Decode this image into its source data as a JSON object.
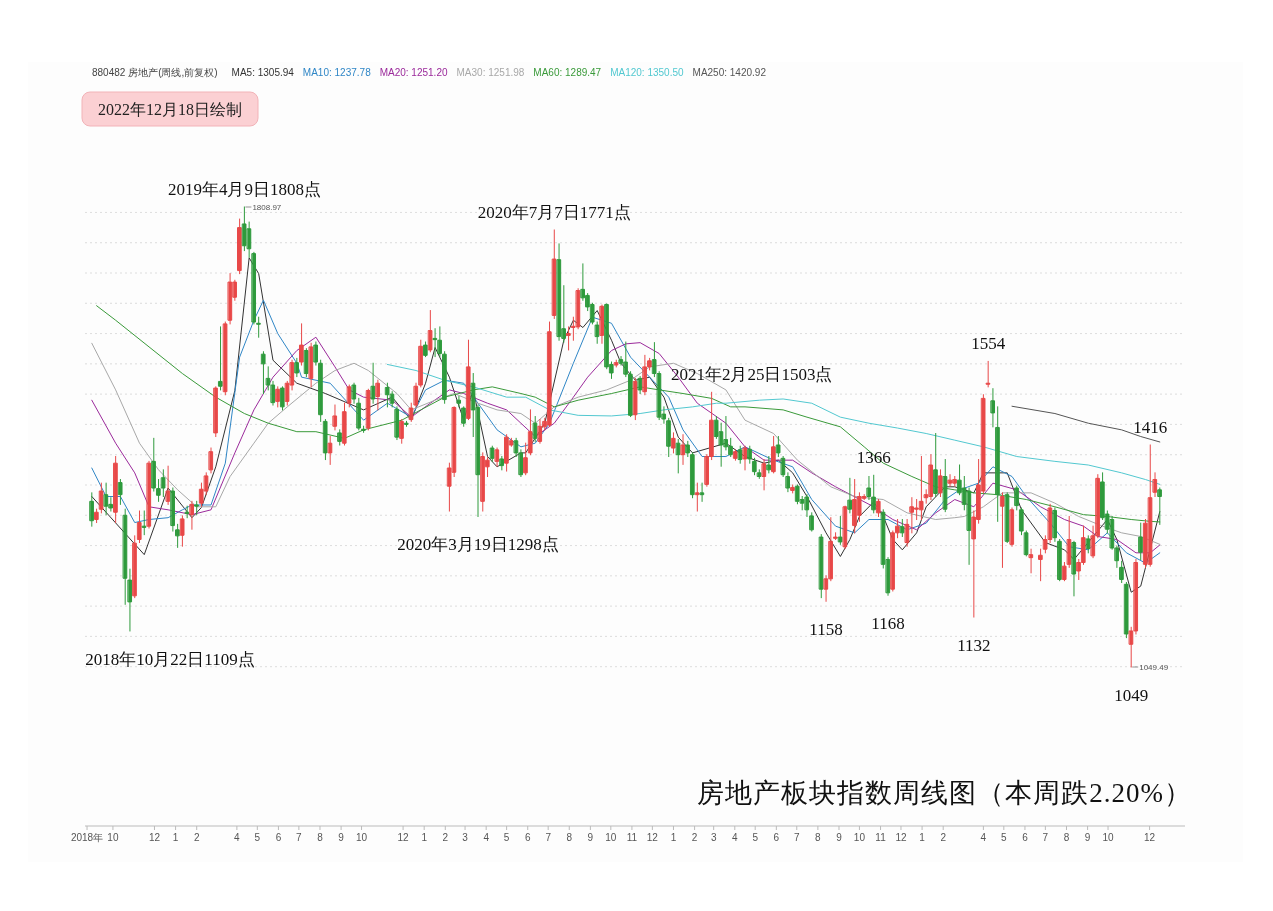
{
  "chart_data": {
    "type": "candlestick",
    "title": "房地产板块指数周线图（本周跌2.20%）",
    "subtitle": "880482 房地产(周线,前复权)",
    "legend": "top left",
    "grid": "y",
    "tick_labels": "x",
    "xlim": [
      "2018-08-21",
      "2023-01-22"
    ],
    "yticks": [
      {
        "value": 1050,
        "label": null
      },
      {
        "value": 1100,
        "label": null
      },
      {
        "value": 1150,
        "label": null
      },
      {
        "value": 1200,
        "label": null
      },
      {
        "value": 1250,
        "label": null
      },
      {
        "value": 1300,
        "label": null
      },
      {
        "value": 1350,
        "label": null
      },
      {
        "value": 1400,
        "label": null
      },
      {
        "value": 1450,
        "label": null
      },
      {
        "value": 1500,
        "label": null
      },
      {
        "value": 1550,
        "label": null
      },
      {
        "value": 1600,
        "label": null
      },
      {
        "value": 1650,
        "label": null
      },
      {
        "value": 1700,
        "label": null
      },
      {
        "value": 1750,
        "label": null
      },
      {
        "value": 1800,
        "label": null
      }
    ],
    "xticks": [
      {
        "value": "2018-08-24",
        "label": "2018年"
      },
      {
        "value": "2018-10",
        "label": "10"
      },
      {
        "value": "2018-12",
        "label": "12"
      },
      {
        "value": "2019-01",
        "label": "1"
      },
      {
        "value": "2019-02",
        "label": "2"
      },
      {
        "value": "2019-04",
        "label": "4"
      },
      {
        "value": "2019-05",
        "label": "5"
      },
      {
        "value": "2019-06",
        "label": "6"
      },
      {
        "value": "2019-07",
        "label": "7"
      },
      {
        "value": "2019-08",
        "label": "8"
      },
      {
        "value": "2019-09",
        "label": "9"
      },
      {
        "value": "2019-10",
        "label": "10"
      },
      {
        "value": "2019-12",
        "label": "12"
      },
      {
        "value": "2020-01",
        "label": "1"
      },
      {
        "value": "2020-02",
        "label": "2"
      },
      {
        "value": "2020-03",
        "label": "3"
      },
      {
        "value": "2020-04",
        "label": "4"
      },
      {
        "value": "2020-05",
        "label": "5"
      },
      {
        "value": "2020-06",
        "label": "6"
      },
      {
        "value": "2020-07",
        "label": "7"
      },
      {
        "value": "2020-08",
        "label": "8"
      },
      {
        "value": "2020-09",
        "label": "9"
      },
      {
        "value": "2020-10",
        "label": "10"
      },
      {
        "value": "2020-11",
        "label": "11"
      },
      {
        "value": "2020-12",
        "label": "12"
      },
      {
        "value": "2021-01",
        "label": "1"
      },
      {
        "value": "2021-02",
        "label": "2"
      },
      {
        "value": "2021-03",
        "label": "3"
      },
      {
        "value": "2021-04",
        "label": "4"
      },
      {
        "value": "2021-05",
        "label": "5"
      },
      {
        "value": "2021-06",
        "label": "6"
      },
      {
        "value": "2021-07",
        "label": "7"
      },
      {
        "value": "2021-08",
        "label": "8"
      },
      {
        "value": "2021-09",
        "label": "9"
      },
      {
        "value": "2021-10",
        "label": "10"
      },
      {
        "value": "2021-11",
        "label": "11"
      },
      {
        "value": "2021-12",
        "label": "12"
      },
      {
        "value": "2022-01",
        "label": "1"
      },
      {
        "value": "2022-02",
        "label": "2"
      },
      {
        "value": "2022-04",
        "label": "4"
      },
      {
        "value": "2022-05",
        "label": "5"
      },
      {
        "value": "2022-06",
        "label": "6"
      },
      {
        "value": "2022-07",
        "label": "7"
      },
      {
        "value": "2022-08",
        "label": "8"
      },
      {
        "value": "2022-09",
        "label": "9"
      },
      {
        "value": "2022-10",
        "label": "10"
      },
      {
        "value": "2022-12",
        "label": "12"
      }
    ],
    "annotations": [
      "2022年12月18日绘制",
      {
        "text": "2018年10月22日1109点",
        "x": "2018-10-26",
        "y": 1109
      },
      {
        "text": "2019年4月9日1808点",
        "x": "2019-04-12",
        "y": 1808.97
      },
      {
        "text": "2020年3月19日1298点",
        "x": "2020-03-20",
        "y": 1298
      },
      {
        "text": "2020年7月7日1771点",
        "x": "2020-07-10",
        "y": 1771
      },
      {
        "text": "2021年2月25日1503点",
        "x": "2021-02-26",
        "y": 1503
      },
      {
        "text": "1158",
        "x": "2021-08-13",
        "y": 1158
      },
      {
        "text": "1366",
        "x": "2021-10-22",
        "y": 1366
      },
      {
        "text": "1168",
        "x": "2021-11-12",
        "y": 1168
      },
      {
        "text": "1132",
        "x": "2022-03-18",
        "y": 1132
      },
      {
        "text": "1554",
        "x": "2022-04-08",
        "y": 1554
      },
      {
        "text": "1049",
        "x": "2022-11-04",
        "y": 1049.49
      },
      {
        "text": "1416",
        "x": "2022-12-02",
        "y": 1416
      },
      {
        "text": "1808.97",
        "x": "2019-04-12",
        "y": 1808.97
      },
      {
        "text": "1049.49",
        "x": "2022-11-04",
        "y": 1049.49
      }
    ],
    "x": [
      "2018-08-31",
      "2018-09-07",
      "2018-09-14",
      "2018-09-21",
      "2018-09-28",
      "2018-10-05",
      "2018-10-12",
      "2018-10-19",
      "2018-10-26",
      "2018-11-02",
      "2018-11-09",
      "2018-11-16",
      "2018-11-23",
      "2018-11-30",
      "2018-12-07",
      "2018-12-14",
      "2018-12-21",
      "2018-12-28",
      "2019-01-04",
      "2019-01-11",
      "2019-01-18",
      "2019-01-25",
      "2019-02-01",
      "2019-02-08",
      "2019-02-15",
      "2019-02-22",
      "2019-03-01",
      "2019-03-08",
      "2019-03-15",
      "2019-03-22",
      "2019-03-29",
      "2019-04-05",
      "2019-04-12",
      "2019-04-19",
      "2019-04-26",
      "2019-05-03",
      "2019-05-10",
      "2019-05-17",
      "2019-05-24",
      "2019-05-31",
      "2019-06-07",
      "2019-06-14",
      "2019-06-21",
      "2019-06-28",
      "2019-07-05",
      "2019-07-12",
      "2019-07-19",
      "2019-07-26",
      "2019-08-02",
      "2019-08-09",
      "2019-08-16",
      "2019-08-23",
      "2019-08-30",
      "2019-09-06",
      "2019-09-13",
      "2019-09-20",
      "2019-09-27",
      "2019-10-04",
      "2019-10-11",
      "2019-10-18",
      "2019-10-25",
      "2019-11-08",
      "2019-11-15",
      "2019-11-22",
      "2019-11-29",
      "2019-12-06",
      "2019-12-13",
      "2019-12-20",
      "2019-12-27",
      "2020-01-03",
      "2020-01-10",
      "2020-01-17",
      "2020-01-24",
      "2020-01-31",
      "2020-02-07",
      "2020-02-14",
      "2020-02-21",
      "2020-02-28",
      "2020-03-06",
      "2020-03-13",
      "2020-03-20",
      "2020-03-27",
      "2020-04-03",
      "2020-04-10",
      "2020-04-17",
      "2020-04-24",
      "2020-05-01",
      "2020-05-08",
      "2020-05-15",
      "2020-05-22",
      "2020-05-29",
      "2020-06-05",
      "2020-06-12",
      "2020-06-19",
      "2020-06-26",
      "2020-07-03",
      "2020-07-10",
      "2020-07-17",
      "2020-07-24",
      "2020-07-31",
      "2020-08-07",
      "2020-08-14",
      "2020-08-21",
      "2020-08-28",
      "2020-09-04",
      "2020-09-11",
      "2020-09-18",
      "2020-09-25",
      "2020-10-02",
      "2020-10-09",
      "2020-10-16",
      "2020-10-23",
      "2020-10-30",
      "2020-11-06",
      "2020-11-13",
      "2020-11-20",
      "2020-11-27",
      "2020-12-04",
      "2020-12-11",
      "2020-12-18",
      "2020-12-25",
      "2021-01-01",
      "2021-01-08",
      "2021-01-15",
      "2021-01-22",
      "2021-01-29",
      "2021-02-05",
      "2021-02-12",
      "2021-02-19",
      "2021-02-26",
      "2021-03-05",
      "2021-03-12",
      "2021-03-19",
      "2021-03-26",
      "2021-04-02",
      "2021-04-09",
      "2021-04-16",
      "2021-04-23",
      "2021-04-30",
      "2021-05-07",
      "2021-05-14",
      "2021-05-21",
      "2021-05-28",
      "2021-06-04",
      "2021-06-11",
      "2021-06-18",
      "2021-06-25",
      "2021-07-02",
      "2021-07-09",
      "2021-07-16",
      "2021-07-23",
      "2021-08-06",
      "2021-08-13",
      "2021-08-20",
      "2021-08-27",
      "2021-09-03",
      "2021-09-10",
      "2021-09-17",
      "2021-09-24",
      "2021-10-01",
      "2021-10-08",
      "2021-10-15",
      "2021-10-22",
      "2021-10-29",
      "2021-11-05",
      "2021-11-12",
      "2021-11-19",
      "2021-11-26",
      "2021-12-03",
      "2021-12-10",
      "2021-12-17",
      "2021-12-24",
      "2021-12-31",
      "2022-01-07",
      "2022-01-14",
      "2022-01-21",
      "2022-01-28",
      "2022-02-04",
      "2022-02-11",
      "2022-02-18",
      "2022-02-25",
      "2022-03-04",
      "2022-03-11",
      "2022-03-18",
      "2022-03-25",
      "2022-04-01",
      "2022-04-08",
      "2022-04-15",
      "2022-04-22",
      "2022-04-29",
      "2022-05-06",
      "2022-05-13",
      "2022-05-20",
      "2022-05-27",
      "2022-06-03",
      "2022-06-10",
      "2022-06-24",
      "2022-07-01",
      "2022-07-08",
      "2022-07-15",
      "2022-07-22",
      "2022-07-29",
      "2022-08-05",
      "2022-08-12",
      "2022-08-19",
      "2022-08-26",
      "2022-09-02",
      "2022-09-09",
      "2022-09-16",
      "2022-09-23",
      "2022-09-30",
      "2022-10-07",
      "2022-10-14",
      "2022-10-21",
      "2022-10-28",
      "2022-11-04",
      "2022-11-11",
      "2022-11-18",
      "2022-11-25",
      "2022-12-02",
      "2022-12-09",
      "2022-12-16"
    ],
    "ohlc": [
      [
        1323,
        1337,
        1282,
        1291
      ],
      [
        1293,
        1310,
        1288,
        1305
      ],
      [
        1310,
        1353,
        1304,
        1340
      ],
      [
        1334,
        1353,
        1301,
        1315
      ],
      [
        1318,
        1329,
        1307,
        1312
      ],
      [
        1305,
        1397,
        1288,
        1386
      ],
      [
        1354,
        1359,
        1318,
        1334
      ],
      [
        1300,
        1310,
        1153,
        1196
      ],
      [
        1193,
        1211,
        1109,
        1157
      ],
      [
        1167,
        1266,
        1164,
        1254
      ],
      [
        1260,
        1307,
        1255,
        1288
      ],
      [
        1282,
        1307,
        1268,
        1280
      ],
      [
        1282,
        1389,
        1279,
        1386
      ],
      [
        1389,
        1427,
        1340,
        1345
      ],
      [
        1344,
        1359,
        1323,
        1333
      ],
      [
        1362,
        1375,
        1331,
        1345
      ],
      [
        1323,
        1381,
        1318,
        1340
      ],
      [
        1340,
        1345,
        1274,
        1283
      ],
      [
        1276,
        1285,
        1247,
        1266
      ],
      [
        1267,
        1299,
        1249,
        1294
      ],
      [
        1305,
        1315,
        1296,
        1303
      ],
      [
        1301,
        1323,
        1277,
        1318
      ],
      [
        1317,
        1323,
        1301,
        1315
      ],
      [
        1320,
        1353,
        1315,
        1343
      ],
      [
        1340,
        1370,
        1334,
        1365
      ],
      [
        1375,
        1411,
        1370,
        1405
      ],
      [
        1436,
        1512,
        1430,
        1510
      ],
      [
        1521,
        1611,
        1507,
        1513
      ],
      [
        1504,
        1619,
        1499,
        1616
      ],
      [
        1622,
        1699,
        1616,
        1685
      ],
      [
        1660,
        1688,
        1655,
        1685
      ],
      [
        1704,
        1789,
        1699,
        1775
      ],
      [
        1781,
        1808.97,
        1737,
        1745
      ],
      [
        1773,
        1784,
        1726,
        1740
      ],
      [
        1732,
        1734,
        1616,
        1619
      ],
      [
        1617,
        1627,
        1594,
        1616
      ],
      [
        1566,
        1570,
        1501,
        1550
      ],
      [
        1526,
        1545,
        1507,
        1515
      ],
      [
        1515,
        1521,
        1482,
        1486
      ],
      [
        1488,
        1512,
        1479,
        1508
      ],
      [
        1510,
        1512,
        1474,
        1479
      ],
      [
        1488,
        1521,
        1482,
        1518
      ],
      [
        1515,
        1556,
        1507,
        1552
      ],
      [
        1552,
        1559,
        1529,
        1535
      ],
      [
        1553,
        1616,
        1548,
        1581
      ],
      [
        1572,
        1575,
        1529,
        1534
      ],
      [
        1526,
        1584,
        1512,
        1578
      ],
      [
        1581,
        1586,
        1548,
        1553
      ],
      [
        1551,
        1556,
        1455,
        1466
      ],
      [
        1455,
        1458,
        1392,
        1403
      ],
      [
        1403,
        1430,
        1384,
        1419
      ],
      [
        1447,
        1482,
        1441,
        1464
      ],
      [
        1436,
        1441,
        1416,
        1422
      ],
      [
        1419,
        1485,
        1416,
        1471
      ],
      [
        1485,
        1515,
        1479,
        1512
      ],
      [
        1515,
        1518,
        1485,
        1492
      ],
      [
        1485,
        1493,
        1441,
        1444
      ],
      [
        1442,
        1447,
        1437,
        1440
      ],
      [
        1444,
        1508,
        1441,
        1506
      ],
      [
        1513,
        1551,
        1485,
        1492
      ],
      [
        1496,
        1523,
        1474,
        1518
      ],
      [
        1511,
        1518,
        1479,
        1499
      ],
      [
        1500,
        1504,
        1479,
        1485
      ],
      [
        1475,
        1479,
        1425,
        1429
      ],
      [
        1427,
        1458,
        1419,
        1455
      ],
      [
        1452,
        1455,
        1447,
        1450
      ],
      [
        1458,
        1485,
        1455,
        1477
      ],
      [
        1482,
        1518,
        1479,
        1513
      ],
      [
        1515,
        1589,
        1512,
        1579
      ],
      [
        1581,
        1586,
        1562,
        1564
      ],
      [
        1573,
        1638,
        1570,
        1605
      ],
      [
        1592,
        1608,
        1562,
        1590
      ],
      [
        1589,
        1611,
        1562,
        1567
      ],
      [
        1566,
        1570,
        1485,
        1491
      ],
      [
        1348,
        1386,
        1307,
        1378
      ],
      [
        1371,
        1479,
        1364,
        1478
      ],
      [
        1490,
        1496,
        1479,
        1485
      ],
      [
        1477,
        1479,
        1447,
        1452
      ],
      [
        1460,
        1589,
        1458,
        1545
      ],
      [
        1518,
        1534,
        1430,
        1474
      ],
      [
        1478,
        1482,
        1298,
        1367
      ],
      [
        1323,
        1403,
        1307,
        1397
      ],
      [
        1380,
        1395,
        1364,
        1391
      ],
      [
        1411,
        1414,
        1389,
        1394
      ],
      [
        1389,
        1411,
        1381,
        1408
      ],
      [
        1393,
        1397,
        1375,
        1382
      ],
      [
        1386,
        1433,
        1373,
        1429
      ],
      [
        1416,
        1427,
        1414,
        1423
      ],
      [
        1423,
        1427,
        1397,
        1403
      ],
      [
        1403,
        1408,
        1364,
        1367
      ],
      [
        1370,
        1419,
        1367,
        1395
      ],
      [
        1403,
        1474,
        1400,
        1438
      ],
      [
        1452,
        1463,
        1422,
        1427
      ],
      [
        1422,
        1458,
        1419,
        1447
      ],
      [
        1446,
        1460,
        1441,
        1455
      ],
      [
        1449,
        1619,
        1447,
        1603
      ],
      [
        1630,
        1771,
        1625,
        1723
      ],
      [
        1722,
        1748,
        1589,
        1595
      ],
      [
        1608,
        1679,
        1586,
        1592
      ],
      [
        1597,
        1611,
        1573,
        1600
      ],
      [
        1610,
        1627,
        1589,
        1612
      ],
      [
        1611,
        1674,
        1608,
        1671
      ],
      [
        1673,
        1715,
        1655,
        1659
      ],
      [
        1663,
        1666,
        1638,
        1644
      ],
      [
        1648,
        1650,
        1616,
        1619
      ],
      [
        1614,
        1619,
        1584,
        1595
      ],
      [
        1597,
        1647,
        1584,
        1645
      ],
      [
        1648,
        1649,
        1542,
        1545
      ],
      [
        1549,
        1553,
        1526,
        1535
      ],
      [
        1548,
        1556,
        1545,
        1552
      ],
      [
        1557,
        1562,
        1548,
        1551
      ],
      [
        1553,
        1586,
        1529,
        1533
      ],
      [
        1533,
        1537,
        1463,
        1465
      ],
      [
        1466,
        1526,
        1458,
        1521
      ],
      [
        1526,
        1529,
        1501,
        1507
      ],
      [
        1504,
        1564,
        1499,
        1545
      ],
      [
        1545,
        1559,
        1540,
        1555
      ],
      [
        1557,
        1585,
        1529,
        1534
      ],
      [
        1534,
        1537,
        1458,
        1462
      ],
      [
        1467,
        1479,
        1452,
        1459
      ],
      [
        1456,
        1460,
        1397,
        1414
      ],
      [
        1411,
        1436,
        1403,
        1427
      ],
      [
        1419,
        1425,
        1370,
        1400
      ],
      [
        1400,
        1433,
        1384,
        1416
      ],
      [
        1416,
        1422,
        1397,
        1403
      ],
      [
        1400,
        1403,
        1329,
        1334
      ],
      [
        1334,
        1353,
        1307,
        1337
      ],
      [
        1337,
        1353,
        1323,
        1334
      ],
      [
        1351,
        1400,
        1348,
        1397
      ],
      [
        1397,
        1503,
        1392,
        1457
      ],
      [
        1457,
        1463,
        1427,
        1430
      ],
      [
        1438,
        1452,
        1381,
        1416
      ],
      [
        1425,
        1463,
        1408,
        1413
      ],
      [
        1414,
        1427,
        1397,
        1400
      ],
      [
        1394,
        1408,
        1391,
        1405
      ],
      [
        1408,
        1414,
        1386,
        1392
      ],
      [
        1393,
        1414,
        1375,
        1411
      ],
      [
        1409,
        1414,
        1386,
        1393
      ],
      [
        1389,
        1394,
        1367,
        1372
      ],
      [
        1370,
        1375,
        1361,
        1364
      ],
      [
        1364,
        1392,
        1342,
        1385
      ],
      [
        1383,
        1397,
        1370,
        1375
      ],
      [
        1372,
        1430,
        1370,
        1413
      ],
      [
        1416,
        1430,
        1397,
        1403
      ],
      [
        1394,
        1397,
        1364,
        1367
      ],
      [
        1364,
        1370,
        1339,
        1345
      ],
      [
        1341,
        1350,
        1337,
        1346
      ],
      [
        1348,
        1350,
        1319,
        1323
      ],
      [
        1326,
        1331,
        1309,
        1320
      ],
      [
        1330,
        1334,
        1298,
        1309
      ],
      [
        1299,
        1304,
        1274,
        1276
      ],
      [
        1264,
        1268,
        1164,
        1178
      ],
      [
        1178,
        1200,
        1158,
        1195
      ],
      [
        1195,
        1296,
        1192,
        1257
      ],
      [
        1262,
        1271,
        1260,
        1264
      ],
      [
        1264,
        1298,
        1252,
        1256
      ],
      [
        1248,
        1315,
        1245,
        1314
      ],
      [
        1325,
        1361,
        1304,
        1310
      ],
      [
        1283,
        1359,
        1271,
        1326
      ],
      [
        1300,
        1337,
        1290,
        1331
      ],
      [
        1328,
        1334,
        1326,
        1331
      ],
      [
        1345,
        1364,
        1326,
        1331
      ],
      [
        1330,
        1366,
        1304,
        1309
      ],
      [
        1304,
        1326,
        1298,
        1323
      ],
      [
        1305,
        1309,
        1213,
        1219
      ],
      [
        1227,
        1230,
        1168,
        1172
      ],
      [
        1178,
        1274,
        1175,
        1271
      ],
      [
        1271,
        1293,
        1263,
        1282
      ],
      [
        1281,
        1293,
        1265,
        1271
      ],
      [
        1255,
        1293,
        1249,
        1285
      ],
      [
        1305,
        1329,
        1271,
        1314
      ],
      [
        1310,
        1326,
        1293,
        1312
      ],
      [
        1309,
        1397,
        1293,
        1323
      ],
      [
        1329,
        1342,
        1320,
        1334
      ],
      [
        1331,
        1400,
        1326,
        1383
      ],
      [
        1375,
        1435,
        1331,
        1336
      ],
      [
        1337,
        1375,
        1331,
        1365
      ],
      [
        1364,
        1392,
        1306,
        1310
      ],
      [
        1353,
        1367,
        1348,
        1358
      ],
      [
        1353,
        1364,
        1348,
        1359
      ],
      [
        1358,
        1383,
        1334,
        1337
      ],
      [
        1345,
        1364,
        1309,
        1318
      ],
      [
        1340,
        1345,
        1219,
        1275
      ],
      [
        1261,
        1307,
        1132,
        1297
      ],
      [
        1293,
        1392,
        1287,
        1350
      ],
      [
        1340,
        1499,
        1337,
        1493
      ],
      [
        1517,
        1554,
        1512,
        1518
      ],
      [
        1489,
        1509,
        1446,
        1469
      ],
      [
        1445,
        1479,
        1290,
        1334
      ],
      [
        1315,
        1337,
        1214,
        1331
      ],
      [
        1334,
        1337,
        1255,
        1257
      ],
      [
        1252,
        1312,
        1249,
        1309
      ],
      [
        1345,
        1348,
        1309,
        1316
      ],
      [
        1309,
        1312,
        1268,
        1274
      ],
      [
        1271,
        1274,
        1233,
        1235
      ],
      [
        1230,
        1244,
        1205,
        1235
      ],
      [
        1227,
        1244,
        1192,
        1234
      ],
      [
        1244,
        1266,
        1238,
        1260
      ],
      [
        1260,
        1318,
        1255,
        1312
      ],
      [
        1308,
        1312,
        1257,
        1263
      ],
      [
        1257,
        1260,
        1192,
        1194
      ],
      [
        1194,
        1222,
        1192,
        1216
      ],
      [
        1219,
        1298,
        1214,
        1260
      ],
      [
        1255,
        1257,
        1167,
        1203
      ],
      [
        1208,
        1227,
        1194,
        1222
      ],
      [
        1222,
        1282,
        1219,
        1263
      ],
      [
        1261,
        1266,
        1238,
        1245
      ],
      [
        1233,
        1282,
        1230,
        1266
      ],
      [
        1266,
        1367,
        1263,
        1361
      ],
      [
        1355,
        1370,
        1293,
        1296
      ],
      [
        1302,
        1307,
        1271,
        1277
      ],
      [
        1293,
        1298,
        1244,
        1246
      ],
      [
        1246,
        1249,
        1214,
        1225
      ],
      [
        1214,
        1224,
        1189,
        1194
      ],
      [
        1186,
        1189,
        1098,
        1104
      ],
      [
        1087,
        1115,
        1049.49,
        1109
      ],
      [
        1109,
        1227,
        1104,
        1222
      ],
      [
        1264,
        1287,
        1227,
        1239
      ],
      [
        1219,
        1293,
        1214,
        1287
      ],
      [
        1219,
        1416,
        1216,
        1329
      ],
      [
        1338,
        1370,
        1331,
        1359
      ],
      [
        1342,
        1345,
        1285,
        1331
      ]
    ],
    "series": [
      {
        "name": "MA5: 1305.94",
        "type": "line",
        "color": "#333333",
        "x": [
          "2018-08-31",
          "2018-11-16",
          "2018-12-21",
          "2019-01-25",
          "2019-02-08",
          "2019-03-01",
          "2019-03-29",
          "2019-04-19",
          "2019-05-03",
          "2019-05-24",
          "2019-06-28",
          "2019-08-09",
          "2019-10-04",
          "2019-11-15",
          "2019-12-13",
          "2020-01-03",
          "2020-01-17",
          "2020-02-07",
          "2020-02-28",
          "2020-03-13",
          "2020-04-03",
          "2020-04-17",
          "2020-05-22",
          "2020-05-29",
          "2020-06-26",
          "2020-07-24",
          "2020-08-07",
          "2020-08-21",
          "2020-09-11",
          "2020-10-02",
          "2020-10-16",
          "2020-11-06",
          "2020-11-27",
          "2020-12-18",
          "2021-01-08",
          "2021-01-29",
          "2021-03-19",
          "2021-04-16",
          "2021-05-14",
          "2021-06-04",
          "2021-06-25",
          "2021-07-16",
          "2021-08-13",
          "2021-09-03",
          "2021-09-17",
          "2021-10-01",
          "2021-10-22",
          "2021-11-05",
          "2021-11-19",
          "2021-12-03",
          "2021-12-24",
          "2022-01-07",
          "2022-02-04",
          "2022-02-18",
          "2022-03-18",
          "2022-04-01",
          "2022-05-06",
          "2022-05-27",
          "2022-07-01",
          "2022-07-29",
          "2022-08-12",
          "2022-09-30",
          "2022-10-14",
          "2022-11-04",
          "2022-11-18",
          "2022-12-16"
        ],
        "values": [
          1331,
          1235,
          1345,
          1296,
          1313,
          1380,
          1506,
          1725,
          1699,
          1556,
          1518,
          1501,
          1474,
          1495,
          1457,
          1518,
          1577,
          1528,
          1457,
          1507,
          1397,
          1380,
          1403,
          1403,
          1452,
          1589,
          1622,
          1610,
          1638,
          1589,
          1551,
          1523,
          1528,
          1495,
          1429,
          1403,
          1419,
          1397,
          1386,
          1391,
          1370,
          1331,
          1271,
          1232,
          1260,
          1298,
          1322,
          1298,
          1260,
          1243,
          1271,
          1314,
          1347,
          1347,
          1337,
          1370,
          1370,
          1309,
          1255,
          1243,
          1227,
          1293,
          1260,
          1173,
          1183,
          1306
        ]
      },
      {
        "name": "MA10: 1237.78",
        "type": "line",
        "color": "#2f86c6",
        "x": [
          "2018-08-31",
          "2018-09-21",
          "2018-10-12",
          "2018-11-02",
          "2018-11-23",
          "2018-12-21",
          "2019-01-11",
          "2019-01-25",
          "2019-02-22",
          "2019-03-15",
          "2019-04-05",
          "2019-04-26",
          "2019-05-10",
          "2019-05-31",
          "2019-06-28",
          "2019-07-05",
          "2019-08-16",
          "2019-10-04",
          "2019-11-08",
          "2019-12-13",
          "2020-01-03",
          "2020-01-31",
          "2020-02-28",
          "2020-03-20",
          "2020-04-17",
          "2020-05-22",
          "2020-06-12",
          "2020-07-03",
          "2020-08-07",
          "2020-09-04",
          "2020-10-02",
          "2020-10-30",
          "2020-11-27",
          "2020-12-25",
          "2021-01-15",
          "2021-02-12",
          "2021-03-19",
          "2021-04-16",
          "2021-05-28",
          "2021-06-25",
          "2021-07-23",
          "2021-08-27",
          "2021-09-24",
          "2021-10-15",
          "2021-11-12",
          "2021-12-10",
          "2022-01-07",
          "2022-02-04",
          "2022-02-25",
          "2022-03-25",
          "2022-04-15",
          "2022-05-13",
          "2022-06-03",
          "2022-07-08",
          "2022-08-05",
          "2022-09-02",
          "2022-09-30",
          "2022-10-28",
          "2022-11-25",
          "2022-12-16"
        ],
        "values": [
          1378,
          1331,
          1331,
          1288,
          1293,
          1296,
          1309,
          1317,
          1317,
          1386,
          1561,
          1622,
          1655,
          1600,
          1551,
          1528,
          1518,
          1457,
          1485,
          1462,
          1507,
          1523,
          1518,
          1485,
          1441,
          1413,
          1419,
          1452,
          1551,
          1627,
          1617,
          1561,
          1528,
          1495,
          1441,
          1397,
          1397,
          1413,
          1391,
          1380,
          1326,
          1282,
          1271,
          1293,
          1293,
          1276,
          1287,
          1326,
          1342,
          1353,
          1380,
          1364,
          1331,
          1287,
          1248,
          1243,
          1271,
          1238,
          1221,
          1238
        ]
      },
      {
        "name": "MA20: 1251.20",
        "type": "line",
        "color": "#9b2a9b",
        "x": [
          "2018-08-31",
          "2018-10-05",
          "2018-11-02",
          "2018-11-23",
          "2018-12-21",
          "2019-01-25",
          "2019-02-22",
          "2019-03-29",
          "2019-04-26",
          "2019-05-24",
          "2019-06-28",
          "2019-07-26",
          "2019-08-23",
          "2019-09-13",
          "2019-10-04",
          "2019-11-15",
          "2019-12-13",
          "2020-01-10",
          "2020-02-07",
          "2020-02-28",
          "2020-04-03",
          "2020-05-01",
          "2020-05-22",
          "2020-06-12",
          "2020-07-10",
          "2020-08-07",
          "2020-08-28",
          "2020-10-02",
          "2020-10-23",
          "2020-11-13",
          "2020-12-11",
          "2021-01-08",
          "2021-02-05",
          "2021-03-19",
          "2021-04-16",
          "2021-05-14",
          "2021-06-25",
          "2021-07-23",
          "2021-08-27",
          "2021-10-22",
          "2021-11-19",
          "2021-12-24",
          "2022-01-21",
          "2022-02-18",
          "2022-03-18",
          "2022-04-15",
          "2022-05-20",
          "2022-06-24",
          "2022-07-29",
          "2022-08-26",
          "2022-09-16",
          "2022-10-14",
          "2022-11-11",
          "2022-12-02",
          "2022-12-16"
        ],
        "values": [
          1490,
          1419,
          1370,
          1314,
          1309,
          1301,
          1309,
          1403,
          1474,
          1528,
          1572,
          1594,
          1545,
          1507,
          1495,
          1490,
          1462,
          1485,
          1507,
          1501,
          1485,
          1474,
          1452,
          1430,
          1452,
          1495,
          1528,
          1572,
          1583,
          1585,
          1567,
          1528,
          1485,
          1452,
          1413,
          1391,
          1391,
          1370,
          1347,
          1314,
          1293,
          1276,
          1304,
          1326,
          1314,
          1353,
          1342,
          1314,
          1293,
          1282,
          1265,
          1260,
          1238,
          1238,
          1251
        ]
      },
      {
        "name": "MA30: 1251.98",
        "type": "line",
        "color": "#a8a8a8",
        "x": [
          "2018-08-31",
          "2018-10-05",
          "2018-11-09",
          "2018-12-07",
          "2019-01-04",
          "2019-02-01",
          "2019-03-01",
          "2019-03-22",
          "2019-04-26",
          "2019-05-17",
          "2019-06-14",
          "2019-07-26",
          "2019-08-23",
          "2019-09-20",
          "2019-10-11",
          "2019-11-22",
          "2019-12-13",
          "2020-01-17",
          "2020-02-14",
          "2020-03-20",
          "2020-04-17",
          "2020-05-22",
          "2020-06-12",
          "2020-07-10",
          "2020-08-14",
          "2020-09-25",
          "2020-10-30",
          "2020-11-27",
          "2021-01-01",
          "2021-02-05",
          "2021-03-19",
          "2021-04-16",
          "2021-05-28",
          "2021-07-02",
          "2021-08-20",
          "2021-09-24",
          "2021-11-05",
          "2021-12-10",
          "2022-01-21",
          "2022-02-18",
          "2022-03-04",
          "2022-04-01",
          "2022-04-29",
          "2022-06-10",
          "2022-07-15",
          "2022-08-19",
          "2022-09-23",
          "2022-10-21",
          "2022-11-18",
          "2022-12-16"
        ],
        "values": [
          1584,
          1507,
          1419,
          1375,
          1342,
          1314,
          1314,
          1364,
          1419,
          1452,
          1479,
          1518,
          1539,
          1551,
          1539,
          1501,
          1474,
          1490,
          1501,
          1485,
          1474,
          1468,
          1452,
          1479,
          1495,
          1507,
          1523,
          1545,
          1551,
          1534,
          1507,
          1457,
          1435,
          1391,
          1347,
          1331,
          1326,
          1304,
          1293,
          1296,
          1298,
          1314,
          1337,
          1337,
          1320,
          1298,
          1282,
          1271,
          1265,
          1252
        ]
      },
      {
        "name": "MA60: 1289.47",
        "type": "line",
        "color": "#3a9a3a",
        "x": [
          "2018-09-07",
          "2018-10-05",
          "2018-11-23",
          "2019-01-11",
          "2019-03-01",
          "2019-04-12",
          "2019-05-17",
          "2019-06-28",
          "2019-07-26",
          "2019-09-06",
          "2019-10-04",
          "2019-11-29",
          "2019-12-27",
          "2020-01-31",
          "2020-03-13",
          "2020-04-10",
          "2020-05-22",
          "2020-06-12",
          "2020-07-10",
          "2020-08-14",
          "2020-10-02",
          "2020-11-13",
          "2020-12-11",
          "2021-01-15",
          "2021-02-26",
          "2021-03-26",
          "2021-04-16",
          "2021-06-11",
          "2021-07-16",
          "2021-09-03",
          "2021-10-08",
          "2021-11-05",
          "2021-12-17",
          "2022-01-21",
          "2022-02-18",
          "2022-03-18",
          "2022-04-22",
          "2022-06-03",
          "2022-07-15",
          "2022-08-26",
          "2022-09-30",
          "2022-11-04",
          "2022-12-02",
          "2022-12-16"
        ],
        "values": [
          1646,
          1622,
          1578,
          1534,
          1495,
          1468,
          1452,
          1438,
          1438,
          1427,
          1441,
          1457,
          1474,
          1495,
          1507,
          1512,
          1501,
          1495,
          1479,
          1490,
          1501,
          1512,
          1507,
          1501,
          1493,
          1479,
          1479,
          1474,
          1462,
          1446,
          1413,
          1386,
          1364,
          1347,
          1342,
          1337,
          1334,
          1326,
          1314,
          1301,
          1298,
          1293,
          1290,
          1289
        ]
      },
      {
        "name": "MA120: 1350.50",
        "type": "line",
        "color": "#52c8d0",
        "x": [
          "2019-11-08",
          "2019-12-20",
          "2020-01-31",
          "2020-03-13",
          "2020-05-01",
          "2020-05-29",
          "2020-07-03",
          "2020-08-14",
          "2020-10-02",
          "2020-11-13",
          "2020-12-18",
          "2021-01-29",
          "2021-03-05",
          "2021-03-19",
          "2021-05-07",
          "2021-06-11",
          "2021-07-23",
          "2021-09-03",
          "2021-10-15",
          "2021-11-26",
          "2022-01-07",
          "2022-02-18",
          "2022-04-01",
          "2022-05-20",
          "2022-07-15",
          "2022-09-02",
          "2022-10-21",
          "2022-11-25",
          "2022-12-16"
        ],
        "values": [
          1549,
          1539,
          1523,
          1512,
          1495,
          1495,
          1474,
          1465,
          1464,
          1468,
          1474,
          1479,
          1485,
          1485,
          1490,
          1492,
          1485,
          1462,
          1452,
          1444,
          1435,
          1424,
          1413,
          1397,
          1389,
          1383,
          1370,
          1359,
          1351
        ]
      },
      {
        "name": "MA250: 1420.92",
        "type": "line",
        "color": "#555555",
        "x": [
          "2022-05-13",
          "2022-07-15",
          "2022-09-02",
          "2022-10-21",
          "2022-11-18",
          "2022-12-16"
        ],
        "values": [
          1480,
          1468,
          1452,
          1441,
          1430,
          1421
        ]
      }
    ]
  }
}
